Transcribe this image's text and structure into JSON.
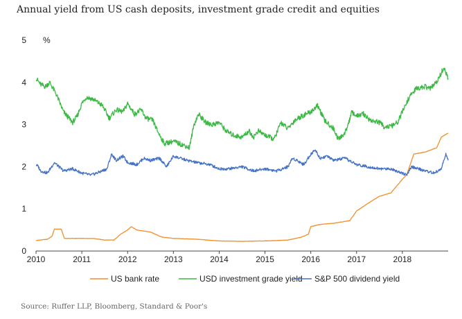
{
  "title": "Annual yield from US cash deposits, investment grade credit and equities",
  "source": "Source: Ruffer LLP, Bloomberg, Standard & Poor's",
  "chart_data": {
    "type": "line",
    "unit_label": "%",
    "xlim": [
      2010,
      2019
    ],
    "ylim": [
      0,
      5
    ],
    "x_ticks": [
      2010,
      2011,
      2012,
      2013,
      2014,
      2015,
      2016,
      2017,
      2018
    ],
    "y_ticks": [
      0,
      1,
      2,
      3,
      4,
      5
    ],
    "grid": false,
    "legend_position": "bottom",
    "series": [
      {
        "name": "US bank rate",
        "color": "#f28e2b",
        "points": [
          [
            2010.0,
            0.25
          ],
          [
            2010.25,
            0.28
          ],
          [
            2010.35,
            0.35
          ],
          [
            2010.4,
            0.52
          ],
          [
            2010.55,
            0.52
          ],
          [
            2010.62,
            0.3
          ],
          [
            2011.0,
            0.3
          ],
          [
            2011.25,
            0.3
          ],
          [
            2011.5,
            0.26
          ],
          [
            2011.7,
            0.26
          ],
          [
            2011.85,
            0.4
          ],
          [
            2012.0,
            0.5
          ],
          [
            2012.08,
            0.58
          ],
          [
            2012.2,
            0.5
          ],
          [
            2012.5,
            0.45
          ],
          [
            2012.75,
            0.33
          ],
          [
            2013.0,
            0.3
          ],
          [
            2013.5,
            0.28
          ],
          [
            2014.0,
            0.24
          ],
          [
            2014.5,
            0.23
          ],
          [
            2015.0,
            0.24
          ],
          [
            2015.5,
            0.26
          ],
          [
            2015.8,
            0.33
          ],
          [
            2015.95,
            0.4
          ],
          [
            2016.0,
            0.58
          ],
          [
            2016.2,
            0.63
          ],
          [
            2016.5,
            0.66
          ],
          [
            2016.85,
            0.72
          ],
          [
            2017.0,
            0.95
          ],
          [
            2017.25,
            1.13
          ],
          [
            2017.5,
            1.3
          ],
          [
            2017.75,
            1.38
          ],
          [
            2018.0,
            1.7
          ],
          [
            2018.1,
            1.82
          ],
          [
            2018.25,
            2.3
          ],
          [
            2018.5,
            2.35
          ],
          [
            2018.75,
            2.45
          ],
          [
            2018.85,
            2.7
          ],
          [
            2019.0,
            2.8
          ]
        ]
      },
      {
        "name": "USD investment grade yield",
        "color": "#3cb944",
        "points": [
          [
            2010.0,
            4.1
          ],
          [
            2010.1,
            3.95
          ],
          [
            2010.2,
            3.9
          ],
          [
            2010.3,
            4.0
          ],
          [
            2010.45,
            3.7
          ],
          [
            2010.6,
            3.3
          ],
          [
            2010.8,
            3.05
          ],
          [
            2010.9,
            3.2
          ],
          [
            2011.0,
            3.5
          ],
          [
            2011.1,
            3.65
          ],
          [
            2011.25,
            3.6
          ],
          [
            2011.45,
            3.45
          ],
          [
            2011.6,
            3.15
          ],
          [
            2011.75,
            3.35
          ],
          [
            2011.9,
            3.3
          ],
          [
            2012.0,
            3.5
          ],
          [
            2012.15,
            3.25
          ],
          [
            2012.3,
            3.35
          ],
          [
            2012.4,
            3.15
          ],
          [
            2012.55,
            3.1
          ],
          [
            2012.65,
            2.85
          ],
          [
            2012.8,
            2.55
          ],
          [
            2013.0,
            2.6
          ],
          [
            2013.25,
            2.5
          ],
          [
            2013.35,
            2.45
          ],
          [
            2013.45,
            3.0
          ],
          [
            2013.55,
            3.25
          ],
          [
            2013.7,
            3.05
          ],
          [
            2013.85,
            3.0
          ],
          [
            2014.0,
            3.05
          ],
          [
            2014.15,
            2.85
          ],
          [
            2014.3,
            2.75
          ],
          [
            2014.5,
            2.7
          ],
          [
            2014.65,
            2.85
          ],
          [
            2014.75,
            2.7
          ],
          [
            2014.85,
            2.85
          ],
          [
            2015.0,
            2.75
          ],
          [
            2015.2,
            2.65
          ],
          [
            2015.35,
            3.05
          ],
          [
            2015.5,
            2.9
          ],
          [
            2015.65,
            3.1
          ],
          [
            2015.8,
            3.2
          ],
          [
            2016.0,
            3.3
          ],
          [
            2016.15,
            3.45
          ],
          [
            2016.3,
            3.1
          ],
          [
            2016.5,
            2.9
          ],
          [
            2016.6,
            2.65
          ],
          [
            2016.75,
            2.8
          ],
          [
            2016.9,
            3.3
          ],
          [
            2017.0,
            3.2
          ],
          [
            2017.15,
            3.25
          ],
          [
            2017.3,
            3.1
          ],
          [
            2017.5,
            3.05
          ],
          [
            2017.6,
            2.95
          ],
          [
            2017.75,
            2.95
          ],
          [
            2017.9,
            3.05
          ],
          [
            2018.0,
            3.3
          ],
          [
            2018.15,
            3.65
          ],
          [
            2018.3,
            3.85
          ],
          [
            2018.5,
            3.9
          ],
          [
            2018.6,
            3.85
          ],
          [
            2018.75,
            4.0
          ],
          [
            2018.9,
            4.35
          ],
          [
            2019.0,
            4.1
          ]
        ]
      },
      {
        "name": "S&P 500 dividend yield",
        "color": "#4472c4",
        "points": [
          [
            2010.0,
            2.05
          ],
          [
            2010.05,
            2.0
          ],
          [
            2010.1,
            1.9
          ],
          [
            2010.25,
            1.85
          ],
          [
            2010.4,
            2.1
          ],
          [
            2010.5,
            2.0
          ],
          [
            2010.6,
            1.9
          ],
          [
            2010.8,
            1.95
          ],
          [
            2011.0,
            1.85
          ],
          [
            2011.2,
            1.8
          ],
          [
            2011.4,
            1.88
          ],
          [
            2011.55,
            1.95
          ],
          [
            2011.65,
            2.3
          ],
          [
            2011.75,
            2.15
          ],
          [
            2011.9,
            2.25
          ],
          [
            2012.0,
            2.1
          ],
          [
            2012.2,
            2.05
          ],
          [
            2012.35,
            2.2
          ],
          [
            2012.5,
            2.15
          ],
          [
            2012.7,
            2.2
          ],
          [
            2012.85,
            2.0
          ],
          [
            2013.0,
            2.25
          ],
          [
            2013.3,
            2.15
          ],
          [
            2013.5,
            2.1
          ],
          [
            2013.8,
            2.05
          ],
          [
            2014.0,
            1.95
          ],
          [
            2014.2,
            1.95
          ],
          [
            2014.5,
            2.0
          ],
          [
            2014.75,
            1.9
          ],
          [
            2015.0,
            1.95
          ],
          [
            2015.25,
            1.9
          ],
          [
            2015.5,
            2.0
          ],
          [
            2015.6,
            2.2
          ],
          [
            2015.7,
            2.15
          ],
          [
            2015.85,
            2.05
          ],
          [
            2016.0,
            2.3
          ],
          [
            2016.1,
            2.4
          ],
          [
            2016.2,
            2.2
          ],
          [
            2016.35,
            2.25
          ],
          [
            2016.5,
            2.15
          ],
          [
            2016.75,
            2.2
          ],
          [
            2017.0,
            2.05
          ],
          [
            2017.25,
            2.0
          ],
          [
            2017.5,
            1.95
          ],
          [
            2017.75,
            1.95
          ],
          [
            2018.0,
            1.85
          ],
          [
            2018.1,
            1.8
          ],
          [
            2018.2,
            2.0
          ],
          [
            2018.35,
            1.95
          ],
          [
            2018.5,
            1.9
          ],
          [
            2018.7,
            1.85
          ],
          [
            2018.85,
            1.95
          ],
          [
            2018.95,
            2.3
          ],
          [
            2019.0,
            2.15
          ]
        ]
      }
    ]
  }
}
